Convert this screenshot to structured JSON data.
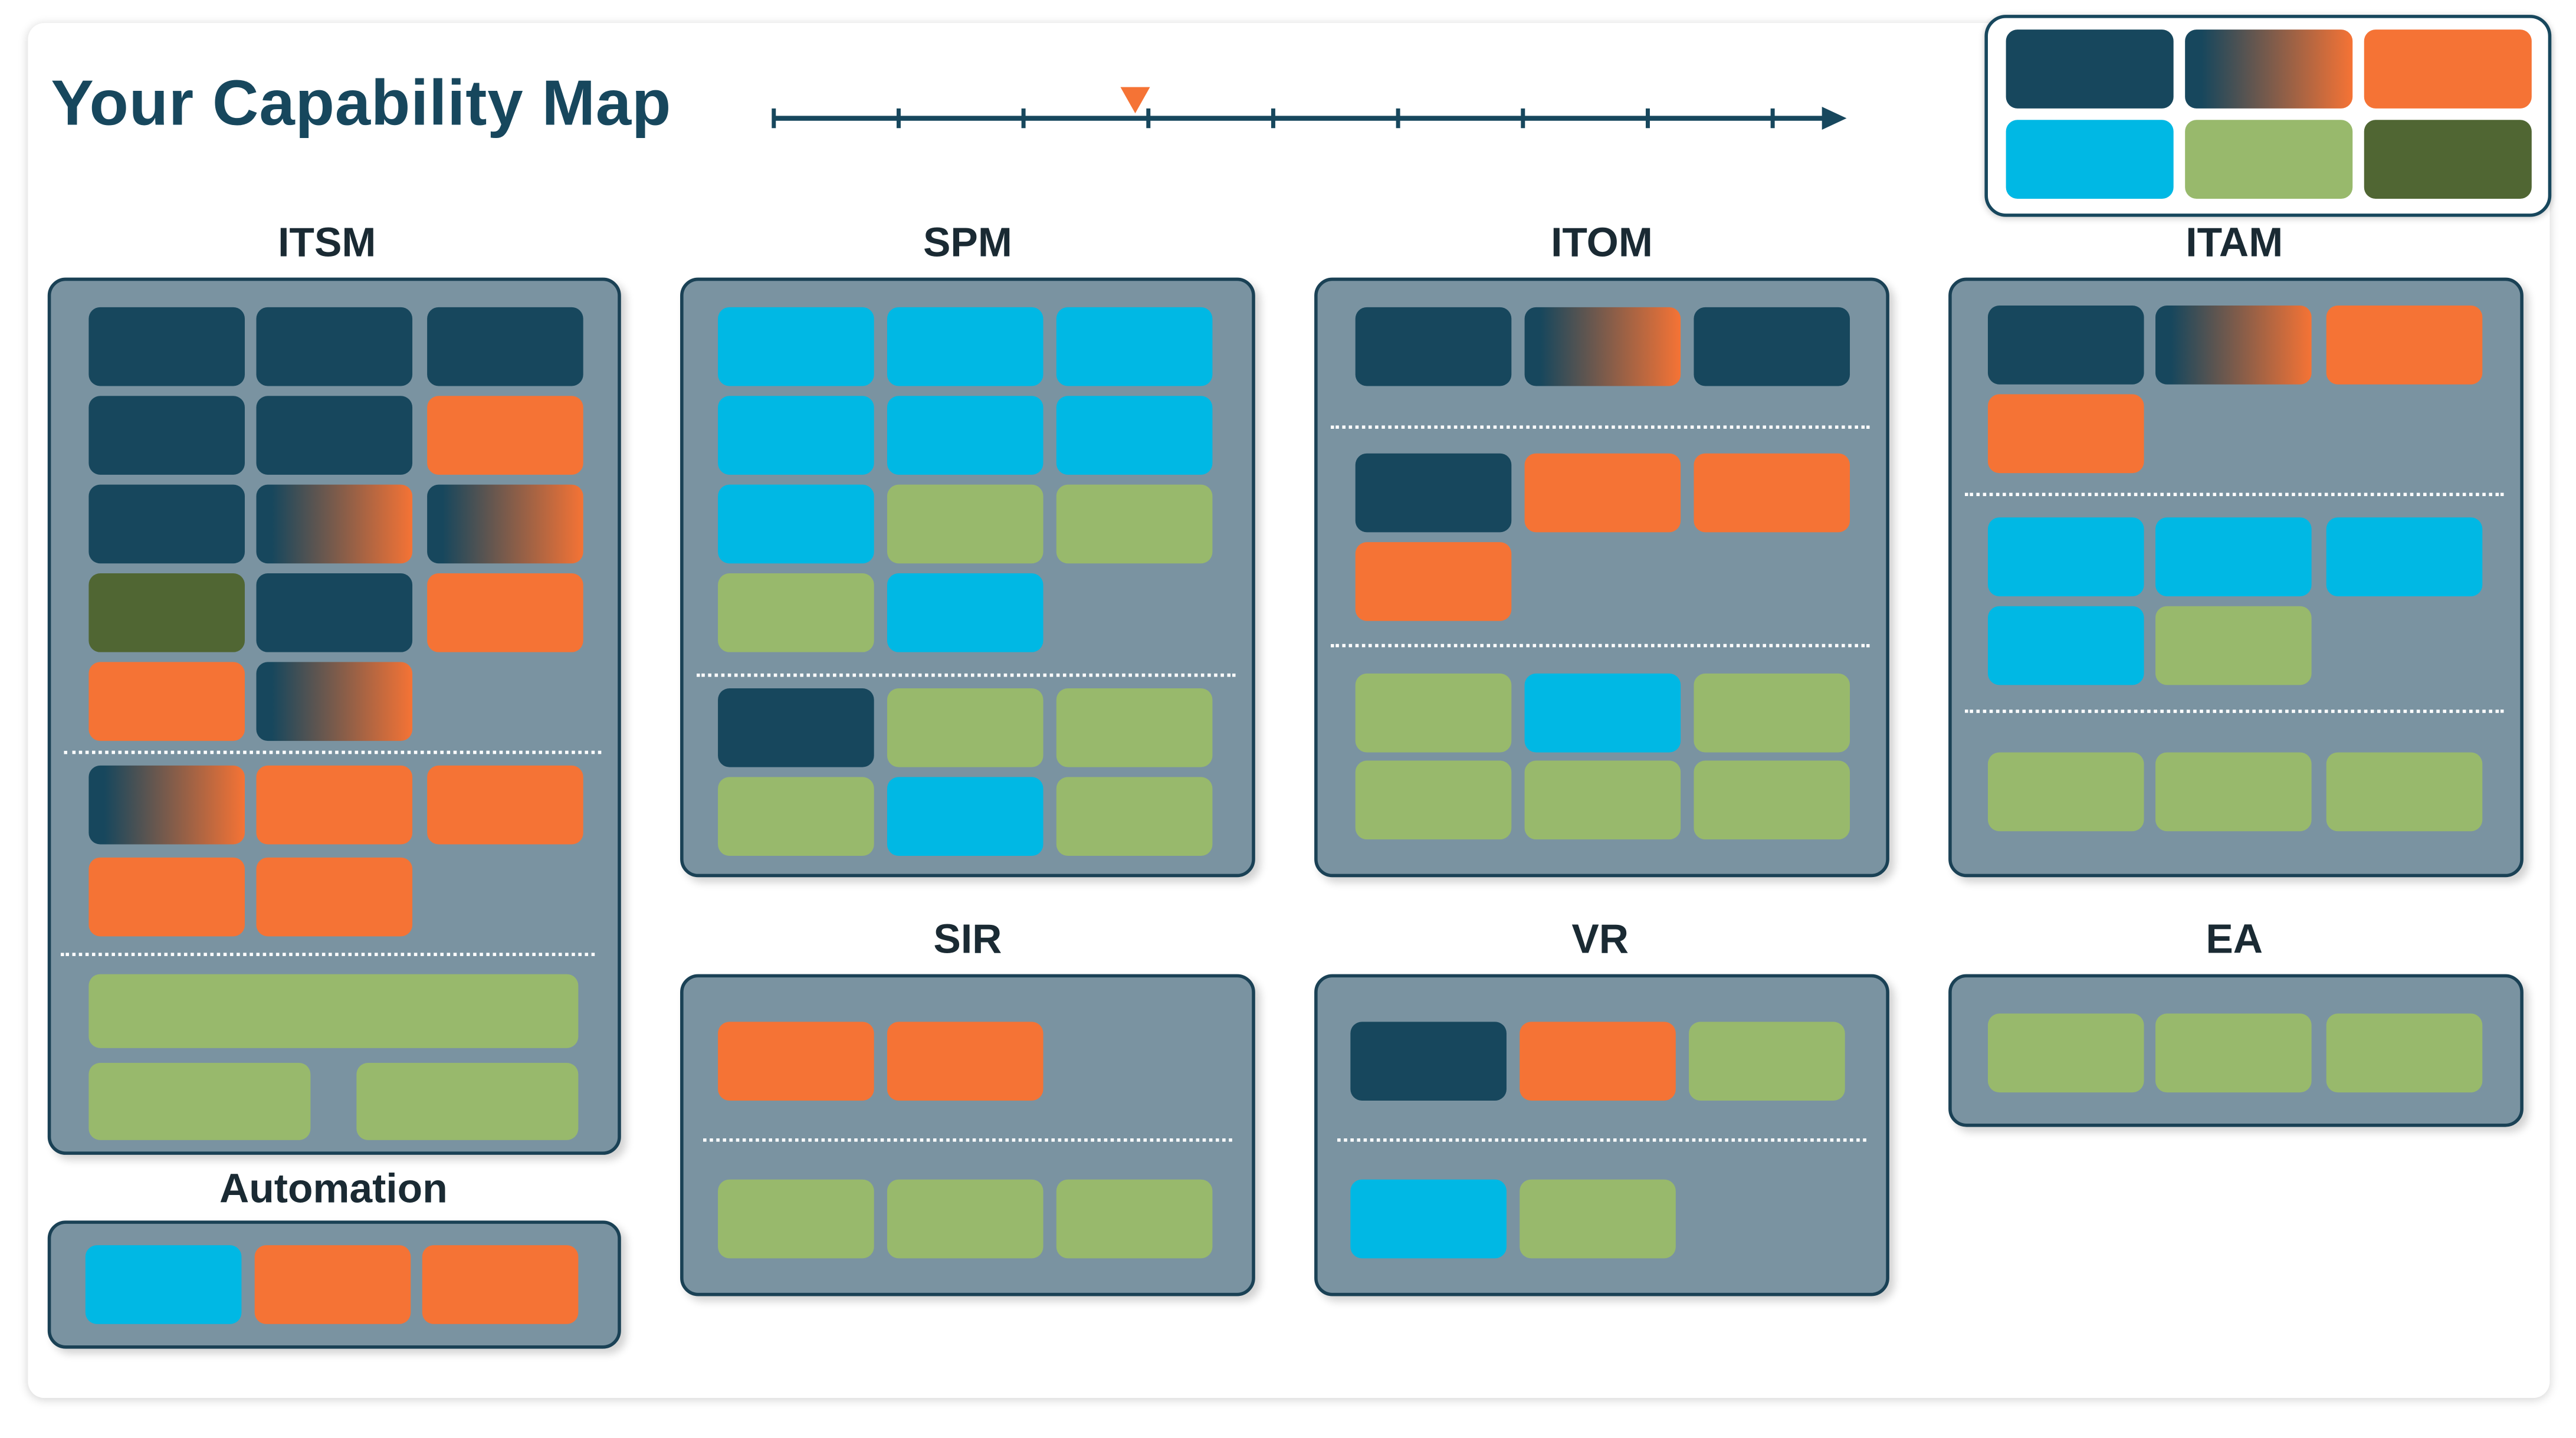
{
  "title": "Your Capability Map",
  "timeline": {
    "ticks": 9,
    "marker_tick": 3,
    "marker_color": "#f57335",
    "line_color": "#17475d"
  },
  "colors": {
    "navy": "#17475d",
    "orange": "#f57335",
    "cyan": "#00b8e4",
    "light_green": "#98b96c",
    "dark_green": "#506633",
    "gradient": "navy-to-orange"
  },
  "legend": [
    "navy",
    "gradient",
    "orange",
    "cyan",
    "light_green",
    "dark_green"
  ],
  "sections": {
    "itsm": {
      "label": "ITSM",
      "groups": [
        [
          "navy",
          "navy",
          "navy",
          "navy",
          "navy",
          "orange",
          "navy",
          "gradient",
          "gradient",
          "dark_green",
          "navy",
          "orange",
          "orange",
          "gradient"
        ],
        [
          "gradient",
          "orange",
          "orange",
          "orange",
          "orange"
        ],
        [
          "light_green",
          "light_green",
          "light_green"
        ]
      ]
    },
    "automation": {
      "label": "Automation",
      "groups": [
        [
          "cyan",
          "orange",
          "orange"
        ]
      ]
    },
    "spm": {
      "label": "SPM",
      "groups": [
        [
          "cyan",
          "cyan",
          "cyan",
          "cyan",
          "cyan",
          "cyan",
          "cyan",
          "light_green",
          "light_green",
          "light_green",
          "cyan"
        ],
        [
          "navy",
          "light_green",
          "light_green",
          "light_green",
          "cyan",
          "light_green"
        ]
      ]
    },
    "itom": {
      "label": "ITOM",
      "groups": [
        [
          "navy",
          "gradient",
          "navy"
        ],
        [
          "navy",
          "orange",
          "orange",
          "orange"
        ],
        [
          "light_green",
          "cyan",
          "light_green",
          "light_green",
          "light_green",
          "light_green"
        ]
      ]
    },
    "itam": {
      "label": "ITAM",
      "groups": [
        [
          "navy",
          "gradient",
          "orange",
          "orange"
        ],
        [
          "cyan",
          "cyan",
          "cyan",
          "cyan",
          "light_green"
        ],
        [
          "light_green",
          "light_green",
          "light_green"
        ]
      ]
    },
    "sir": {
      "label": "SIR",
      "groups": [
        [
          "orange",
          "orange"
        ],
        [
          "light_green",
          "light_green",
          "light_green"
        ]
      ]
    },
    "vr": {
      "label": "VR",
      "groups": [
        [
          "navy",
          "orange",
          "light_green"
        ],
        [
          "cyan",
          "light_green"
        ]
      ]
    },
    "ea": {
      "label": "EA",
      "groups": [
        [
          "light_green",
          "light_green",
          "light_green"
        ]
      ]
    }
  }
}
